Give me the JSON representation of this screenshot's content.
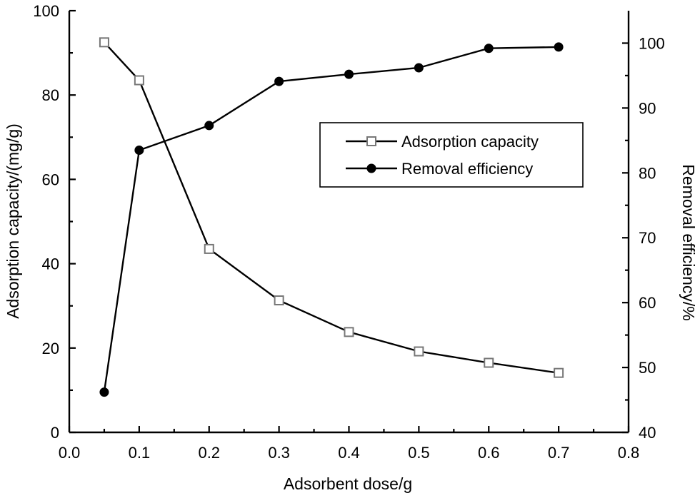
{
  "chart_data": {
    "type": "line",
    "title": "",
    "xlabel": "Adsorbent dose/g",
    "ylabel_left": "Adsorption capacity/(mg/g)",
    "ylabel_right": "Removal efficiency/%",
    "xlim": [
      0.0,
      0.8
    ],
    "ylim_left": [
      0,
      100
    ],
    "ylim_right": [
      40,
      105
    ],
    "x_ticks": [
      "0.0",
      "0.1",
      "0.2",
      "0.3",
      "0.4",
      "0.5",
      "0.6",
      "0.7",
      "0.8"
    ],
    "y_left_ticks": [
      "0",
      "20",
      "40",
      "60",
      "80",
      "100"
    ],
    "y_right_ticks": [
      "40",
      "50",
      "60",
      "70",
      "80",
      "90",
      "100"
    ],
    "grid": false,
    "legend_position": "upper-right-center",
    "series": [
      {
        "name": "Adsorption capacity",
        "axis": "left",
        "marker": "open-square",
        "x": [
          0.05,
          0.1,
          0.2,
          0.3,
          0.4,
          0.5,
          0.6,
          0.7
        ],
        "values": [
          92.5,
          83.5,
          43.5,
          31.3,
          23.8,
          19.2,
          16.5,
          14.1
        ]
      },
      {
        "name": "Removal efficiency",
        "axis": "right",
        "marker": "filled-circle",
        "x": [
          0.05,
          0.1,
          0.2,
          0.3,
          0.4,
          0.5,
          0.6,
          0.7
        ],
        "values": [
          46.2,
          83.5,
          87.3,
          94.1,
          95.2,
          96.2,
          99.2,
          99.4
        ]
      }
    ]
  }
}
